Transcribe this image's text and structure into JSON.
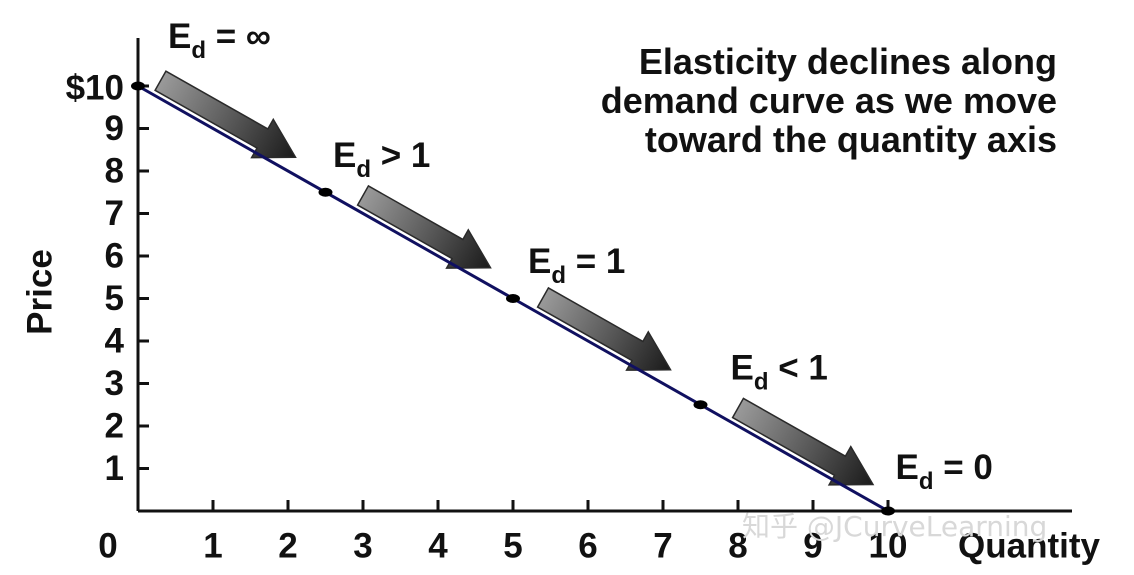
{
  "chart_data": {
    "type": "line",
    "title_lines": [
      "Elasticity declines along",
      "demand curve as we move",
      "toward the quantity axis"
    ],
    "xlabel": "Quantity",
    "ylabel": "Price",
    "xlim": [
      0,
      10
    ],
    "ylim": [
      0,
      10
    ],
    "x_ticks": [
      "1",
      "2",
      "3",
      "4",
      "5",
      "6",
      "7",
      "8",
      "9",
      "10"
    ],
    "y_ticks": [
      "1",
      "2",
      "3",
      "4",
      "5",
      "6",
      "7",
      "8",
      "9",
      "$10"
    ],
    "origin_label": "0",
    "grid": false,
    "colors": {
      "line": "#101060",
      "arrow": "#707070"
    },
    "demand_line": [
      {
        "x": 0,
        "y": 10
      },
      {
        "x": 10,
        "y": 0
      }
    ],
    "points": [
      {
        "x": 0,
        "y": 10
      },
      {
        "x": 2.5,
        "y": 7.5
      },
      {
        "x": 5,
        "y": 5
      },
      {
        "x": 7.5,
        "y": 2.5
      },
      {
        "x": 10,
        "y": 0
      }
    ],
    "arrows": [
      {
        "from": [
          0.3,
          9.7
        ],
        "to": [
          2.1,
          7.9
        ]
      },
      {
        "from": [
          3.0,
          7.0
        ],
        "to": [
          4.7,
          5.3
        ]
      },
      {
        "from": [
          5.4,
          4.6
        ],
        "to": [
          7.1,
          2.9
        ]
      },
      {
        "from": [
          8.0,
          2.0
        ],
        "to": [
          9.8,
          0.2
        ]
      }
    ],
    "annotations": [
      {
        "main": "E",
        "sub": "d",
        "rest": " = ∞",
        "x": 0.4,
        "y": 10.9
      },
      {
        "main": "E",
        "sub": "d",
        "rest": " > 1",
        "x": 2.6,
        "y": 8.1
      },
      {
        "main": "E",
        "sub": "d",
        "rest": " = 1",
        "x": 5.2,
        "y": 5.6
      },
      {
        "main": "E",
        "sub": "d",
        "rest": " < 1",
        "x": 7.9,
        "y": 3.1
      },
      {
        "main": "E",
        "sub": "d",
        "rest": " = 0",
        "x": 10.1,
        "y": 0.75
      }
    ]
  },
  "watermark": "知乎 @JCurveLearning"
}
